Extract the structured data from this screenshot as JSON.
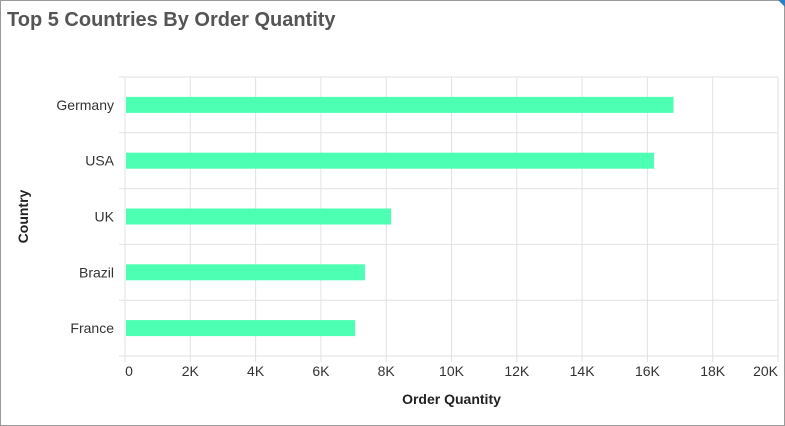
{
  "title": "Top 5 Countries By Order Quantity",
  "chart_data": {
    "type": "bar",
    "orientation": "horizontal",
    "title": "Top 5 Countries By Order Quantity",
    "xlabel": "Order Quantity",
    "ylabel": "Country",
    "categories": [
      "Germany",
      "USA",
      "UK",
      "Brazil",
      "France"
    ],
    "values": [
      16800,
      16200,
      8150,
      7350,
      7050
    ],
    "xlim": [
      0,
      20000
    ],
    "x_ticks": [
      0,
      2000,
      4000,
      6000,
      8000,
      10000,
      12000,
      14000,
      16000,
      18000,
      20000
    ],
    "x_tick_labels": [
      "0",
      "2K",
      "4K",
      "6K",
      "8K",
      "10K",
      "12K",
      "14K",
      "16K",
      "18K",
      "20K"
    ],
    "grid": true,
    "bar_color": "#4dffb2"
  }
}
